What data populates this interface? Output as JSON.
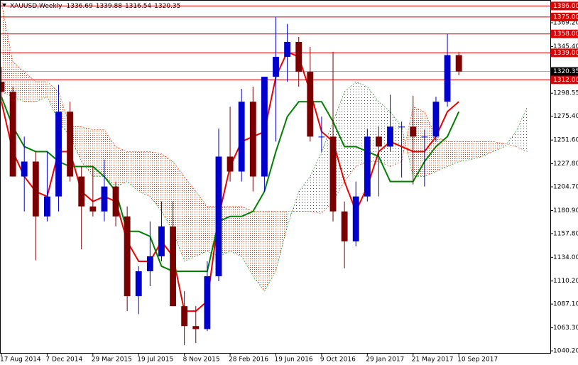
{
  "chart_data": {
    "type": "candlestick",
    "title": "XAUUSD,Weekly",
    "header_values": [
      1336.69,
      1339.88,
      1316.54,
      1320.35
    ],
    "x": [
      "2014-08-17",
      "2014-09-14",
      "2014-10-12",
      "2014-11-09",
      "2014-12-07",
      "2015-01-04",
      "2015-02-01",
      "2015-03-01",
      "2015-03-29",
      "2015-04-26",
      "2015-05-24",
      "2015-06-21",
      "2015-07-19",
      "2015-08-16",
      "2015-09-13",
      "2015-10-11",
      "2015-11-08",
      "2015-12-06",
      "2016-01-03",
      "2016-01-31",
      "2016-02-28",
      "2016-03-27",
      "2016-04-24",
      "2016-05-22",
      "2016-06-19",
      "2016-07-17",
      "2016-08-14",
      "2016-09-11",
      "2016-10-09",
      "2016-11-06",
      "2016-12-04",
      "2017-01-01",
      "2017-01-29",
      "2017-02-26",
      "2017-03-26",
      "2017-04-23",
      "2017-05-21",
      "2017-06-18",
      "2017-07-16",
      "2017-08-13",
      "2017-09-10"
    ],
    "ohlc": [
      [
        1310,
        1325,
        1290,
        1300
      ],
      [
        1300,
        1305,
        1215,
        1215
      ],
      [
        1215,
        1255,
        1180,
        1230
      ],
      [
        1230,
        1240,
        1131,
        1175
      ],
      [
        1175,
        1240,
        1170,
        1195
      ],
      [
        1195,
        1307,
        1180,
        1280
      ],
      [
        1280,
        1290,
        1210,
        1215
      ],
      [
        1215,
        1225,
        1142,
        1185
      ],
      [
        1185,
        1225,
        1175,
        1180
      ],
      [
        1180,
        1232,
        1170,
        1205
      ],
      [
        1205,
        1210,
        1165,
        1175
      ],
      [
        1175,
        1185,
        1080,
        1095
      ],
      [
        1095,
        1125,
        1077,
        1120
      ],
      [
        1120,
        1170,
        1105,
        1135
      ],
      [
        1135,
        1190,
        1130,
        1165
      ],
      [
        1165,
        1190,
        1085,
        1085
      ],
      [
        1085,
        1100,
        1046,
        1065
      ],
      [
        1065,
        1085,
        1048,
        1062
      ],
      [
        1062,
        1130,
        1060,
        1115
      ],
      [
        1115,
        1263,
        1110,
        1235
      ],
      [
        1235,
        1285,
        1210,
        1220
      ],
      [
        1220,
        1303,
        1210,
        1290
      ],
      [
        1290,
        1305,
        1200,
        1215
      ],
      [
        1215,
        1315,
        1200,
        1315
      ],
      [
        1315,
        1375,
        1250,
        1335
      ],
      [
        1335,
        1368,
        1310,
        1350
      ],
      [
        1350,
        1355,
        1305,
        1320
      ],
      [
        1320,
        1345,
        1250,
        1255
      ],
      [
        1255,
        1275,
        1240,
        1255
      ],
      [
        1255,
        1340,
        1170,
        1180
      ],
      [
        1180,
        1190,
        1123,
        1150
      ],
      [
        1150,
        1210,
        1145,
        1195
      ],
      [
        1195,
        1263,
        1190,
        1255
      ],
      [
        1255,
        1265,
        1195,
        1245
      ],
      [
        1245,
        1297,
        1240,
        1265
      ],
      [
        1265,
        1270,
        1214,
        1265
      ],
      [
        1265,
        1296,
        1207,
        1255
      ],
      [
        1255,
        1262,
        1205,
        1255
      ],
      [
        1255,
        1295,
        1250,
        1290
      ],
      [
        1290,
        1358,
        1285,
        1336.69
      ],
      [
        1336.69,
        1339.88,
        1316.54,
        1320.35
      ]
    ],
    "up_color": "#0000cc",
    "down_color": "#7a0000",
    "series": [
      {
        "name": "Tenkan-sen",
        "color": "#ee0000",
        "values": [
          1290,
          1240,
          1215,
          1200,
          1195,
          1240,
          1240,
          1200,
          1190,
          1195,
          1190,
          1150,
          1130,
          1130,
          1150,
          1135,
          1080,
          1080,
          1090,
          1175,
          1225,
          1250,
          1255,
          1260,
          1315,
          1340,
          1335,
          1300,
          1260,
          1250,
          1210,
          1180,
          1205,
          1240,
          1250,
          1245,
          1240,
          1240,
          1255,
          1280,
          1290
        ]
      },
      {
        "name": "Kijun-sen",
        "color": "#008000",
        "values": [
          1295,
          1265,
          1245,
          1240,
          1240,
          1230,
          1225,
          1225,
          1225,
          1215,
          1200,
          1160,
          1160,
          1155,
          1125,
          1120,
          1120,
          1120,
          1120,
          1170,
          1175,
          1175,
          1180,
          1200,
          1240,
          1275,
          1290,
          1290,
          1290,
          1270,
          1245,
          1245,
          1240,
          1235,
          1210,
          1210,
          1210,
          1230,
          1245,
          1255,
          1280
        ]
      }
    ],
    "cloud": {
      "x": [
        "2014-08-17",
        "2014-09-14",
        "2014-10-12",
        "2014-11-09",
        "2014-12-07",
        "2015-01-04",
        "2015-02-01",
        "2015-03-01",
        "2015-03-29",
        "2015-04-26",
        "2015-05-24",
        "2015-06-21",
        "2015-07-19",
        "2015-08-16",
        "2015-09-13",
        "2015-10-11",
        "2015-11-08",
        "2015-12-06",
        "2016-01-03",
        "2016-01-31",
        "2016-02-28",
        "2016-03-27",
        "2016-04-24",
        "2016-05-22",
        "2016-06-19",
        "2016-07-17",
        "2016-08-14",
        "2016-09-11",
        "2016-10-09",
        "2016-11-06",
        "2016-12-04",
        "2017-01-01",
        "2017-01-29",
        "2017-02-26",
        "2017-03-26",
        "2017-04-23",
        "2017-05-21",
        "2017-06-18",
        "2017-07-16",
        "2017-08-13",
        "2017-09-10",
        "2017-10-08",
        "2017-11-05",
        "2017-12-03",
        "2017-12-31",
        "2018-01-28",
        "2018-02-25"
      ],
      "span_a": [
        1300,
        1295,
        1290,
        1290,
        1295,
        1270,
        1255,
        1230,
        1215,
        1215,
        1205,
        1210,
        1200,
        1195,
        1180,
        1160,
        1130,
        1135,
        1140,
        1135,
        1140,
        1135,
        1115,
        1100,
        1120,
        1165,
        1200,
        1215,
        1240,
        1270,
        1300,
        1310,
        1305,
        1290,
        1280,
        1265,
        1215,
        1215,
        1220,
        1225,
        1230,
        1232,
        1235,
        1240,
        1245,
        1260,
        1285
      ],
      "span_b": [
        1390,
        1330,
        1320,
        1310,
        1310,
        1300,
        1265,
        1265,
        1262,
        1262,
        1245,
        1240,
        1240,
        1240,
        1238,
        1230,
        1215,
        1200,
        1185,
        1185,
        1185,
        1185,
        1180,
        1180,
        1180,
        1180,
        1180,
        1180,
        1178,
        1190,
        1210,
        1225,
        1230,
        1230,
        1225,
        1230,
        1285,
        1280,
        1255,
        1250,
        1250,
        1250,
        1250,
        1250,
        1248,
        1245,
        1240
      ],
      "up_color": "#008000",
      "down_color": "#e03000"
    },
    "levels": [
      {
        "value": 1386,
        "label": "1386.00"
      },
      {
        "value": 1375,
        "label": "1375.00"
      },
      {
        "value": 1358,
        "label": "1358.00"
      },
      {
        "value": 1339,
        "label": "1339.00"
      },
      {
        "value": 1312,
        "label": "1312.00"
      }
    ],
    "level_color": "#dd0000",
    "last_price": 1320.35,
    "xlim": [
      "2014-08-17",
      "2018-04-22"
    ],
    "ylim": [
      1038.1,
      1392.0
    ],
    "yticks": [
      {
        "value": 1369.2,
        "label": "1369.20"
      },
      {
        "value": 1345.4,
        "label": "1345.40"
      },
      1298.55,
      {
        "value": 1275.4,
        "label": "1275.40"
      },
      {
        "value": 1251.6,
        "label": "1251.60"
      },
      {
        "value": 1227.8,
        "label": "1227.80"
      },
      {
        "value": 1204.7,
        "label": "1204.70"
      },
      {
        "value": 1180.9,
        "label": "1180.90"
      },
      {
        "value": 1157.8,
        "label": "1157.80"
      },
      {
        "value": 1134,
        "label": "1134.00"
      },
      {
        "value": 1110.2,
        "label": "1110.20"
      },
      {
        "value": 1087.1,
        "label": "1087.10"
      },
      {
        "value": 1063.3,
        "label": "1063.30"
      },
      {
        "value": 1040.2,
        "label": "1040.20"
      }
    ],
    "xticks": [
      {
        "value": "2014-08-17",
        "label": "17 Aug 2014"
      },
      {
        "value": "2014-12-07",
        "label": "7 Dec 2014"
      },
      {
        "value": "2015-03-29",
        "label": "29 Mar 2015"
      },
      {
        "value": "2015-07-19",
        "label": "19 Jul 2015"
      },
      {
        "value": "2015-11-08",
        "label": "8 Nov 2015"
      },
      {
        "value": "2016-02-28",
        "label": "28 Feb 2016"
      },
      {
        "value": "2016-06-19",
        "label": "19 Jun 2016"
      },
      {
        "value": "2016-10-09",
        "label": "9 Oct 2016"
      },
      {
        "value": "2017-01-29",
        "label": "29 Jan 2017"
      },
      {
        "value": "2017-05-21",
        "label": "21 May 2017"
      },
      {
        "value": "2017-09-10",
        "label": "10 Sep 2017"
      }
    ]
  }
}
